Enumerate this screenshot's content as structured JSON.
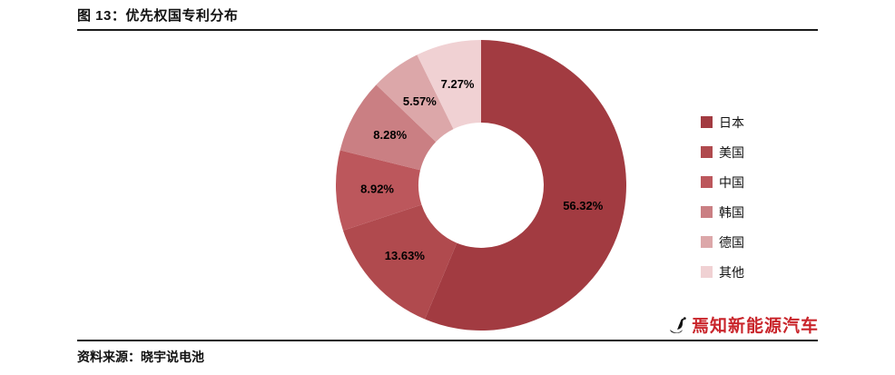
{
  "header": {
    "title": "图 13：优先权国专利分布"
  },
  "footer": {
    "source": "资料来源：晓宇说电池",
    "brand": "焉知新能源汽车"
  },
  "colors": {
    "brand_red": "#C9252B",
    "divider": "#1A1A1A",
    "slice_label": "#000000"
  },
  "chart_data": {
    "type": "pie",
    "subtype": "donut",
    "title": "优先权国专利分布",
    "categories": [
      "日本",
      "美国",
      "中国",
      "韩国",
      "德国",
      "其他"
    ],
    "values": [
      56.32,
      13.63,
      8.92,
      8.28,
      5.57,
      7.27
    ],
    "labels": [
      "56.32%",
      "13.63%",
      "8.92%",
      "8.28%",
      "5.57%",
      "7.27%"
    ],
    "colors": [
      "#A23B41",
      "#B04A4E",
      "#BC575C",
      "#CA7F83",
      "#DCA7A9",
      "#F0D1D3"
    ],
    "legend_position": "right",
    "legend": [
      "日本",
      "美国",
      "中国",
      "韩国",
      "德国",
      "其他"
    ],
    "start_angle_deg": 0,
    "direction": "clockwise",
    "donut_hole_ratio": 0.43
  }
}
